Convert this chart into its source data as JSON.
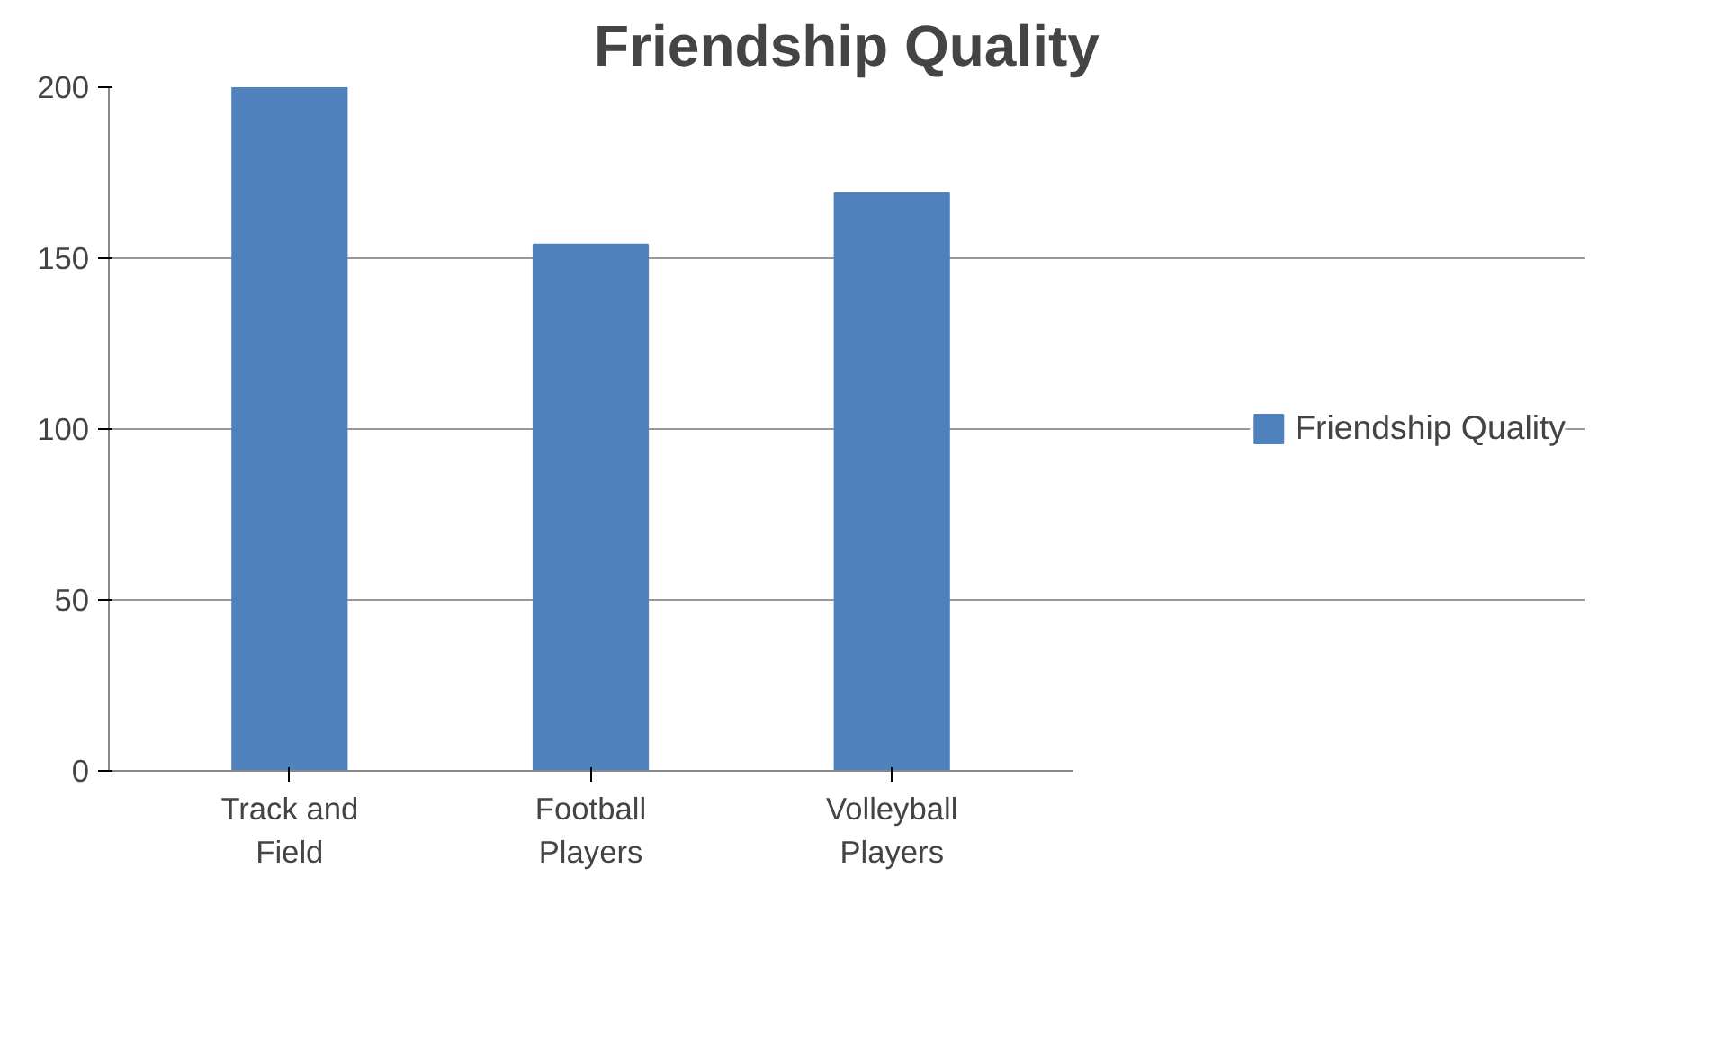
{
  "chart_data": {
    "type": "bar",
    "title": "Friendship Quality",
    "categories": [
      "Track and\nField",
      "Football\nPlayers",
      "Volleyball\nPlayers"
    ],
    "series": [
      {
        "name": "Friendship Quality",
        "color": "#4f81bd",
        "values": [
          200,
          154,
          169
        ]
      }
    ],
    "ylim": [
      0,
      200
    ],
    "yticks": [
      0,
      50,
      100,
      150,
      200
    ],
    "grid": "y",
    "legend": "right"
  }
}
